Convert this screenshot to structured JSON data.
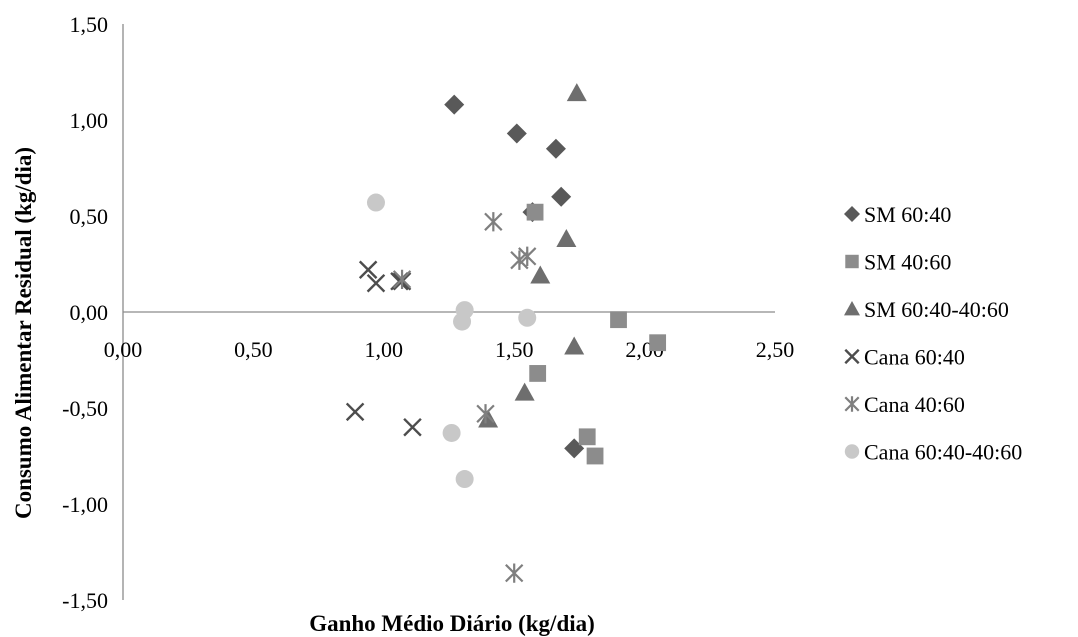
{
  "chart_data": {
    "type": "scatter",
    "title": "",
    "xlabel": "Ganho Médio Diário (kg/dia)",
    "ylabel": "Consumo Alimentar  Residual (kg/dia)",
    "xlim": [
      0,
      2.5
    ],
    "ylim": [
      -1.5,
      1.5
    ],
    "x_ticks": [
      "0,00",
      "0,50",
      "1,00",
      "1,50",
      "2,00",
      "2,50"
    ],
    "y_ticks": [
      "1,50",
      "1,00",
      "0,50",
      "0,00",
      "-0,50",
      "-1,00",
      "-1,50"
    ],
    "grid": false,
    "legend_position": "right",
    "series": [
      {
        "name": "SM 60:40",
        "marker": "diamond",
        "color": "#595959",
        "points": [
          [
            1.27,
            1.08
          ],
          [
            1.51,
            0.93
          ],
          [
            1.66,
            0.85
          ],
          [
            1.68,
            0.6
          ],
          [
            1.57,
            0.52
          ],
          [
            1.73,
            -0.71
          ]
        ]
      },
      {
        "name": "SM 40:60",
        "marker": "square",
        "color": "#8c8c8c",
        "points": [
          [
            1.58,
            0.52
          ],
          [
            1.9,
            -0.04
          ],
          [
            2.05,
            -0.16
          ],
          [
            1.59,
            -0.32
          ],
          [
            1.78,
            -0.65
          ],
          [
            1.81,
            -0.75
          ]
        ]
      },
      {
        "name": "SM 60:40-40:60",
        "marker": "triangle",
        "color": "#6e6e6e",
        "points": [
          [
            1.74,
            1.14
          ],
          [
            1.7,
            0.38
          ],
          [
            1.6,
            0.19
          ],
          [
            1.73,
            -0.18
          ],
          [
            1.54,
            -0.42
          ],
          [
            1.4,
            -0.56
          ]
        ]
      },
      {
        "name": "Cana 60:40",
        "marker": "x",
        "color": "#4d4d4d",
        "points": [
          [
            0.94,
            0.22
          ],
          [
            0.97,
            0.15
          ],
          [
            1.06,
            0.16
          ],
          [
            1.07,
            0.16
          ],
          [
            0.89,
            -0.52
          ],
          [
            1.11,
            -0.6
          ]
        ]
      },
      {
        "name": "Cana 40:60",
        "marker": "star",
        "color": "#7f7f7f",
        "points": [
          [
            1.42,
            0.47
          ],
          [
            1.52,
            0.27
          ],
          [
            1.55,
            0.29
          ],
          [
            1.07,
            0.17
          ],
          [
            1.39,
            -0.53
          ],
          [
            1.5,
            -1.36
          ]
        ]
      },
      {
        "name": "Cana 60:40-40:60",
        "marker": "circle",
        "color": "#c8c8c8",
        "points": [
          [
            0.97,
            0.57
          ],
          [
            1.31,
            0.01
          ],
          [
            1.3,
            -0.05
          ],
          [
            1.55,
            -0.03
          ],
          [
            1.26,
            -0.63
          ],
          [
            1.31,
            -0.87
          ]
        ]
      }
    ]
  }
}
